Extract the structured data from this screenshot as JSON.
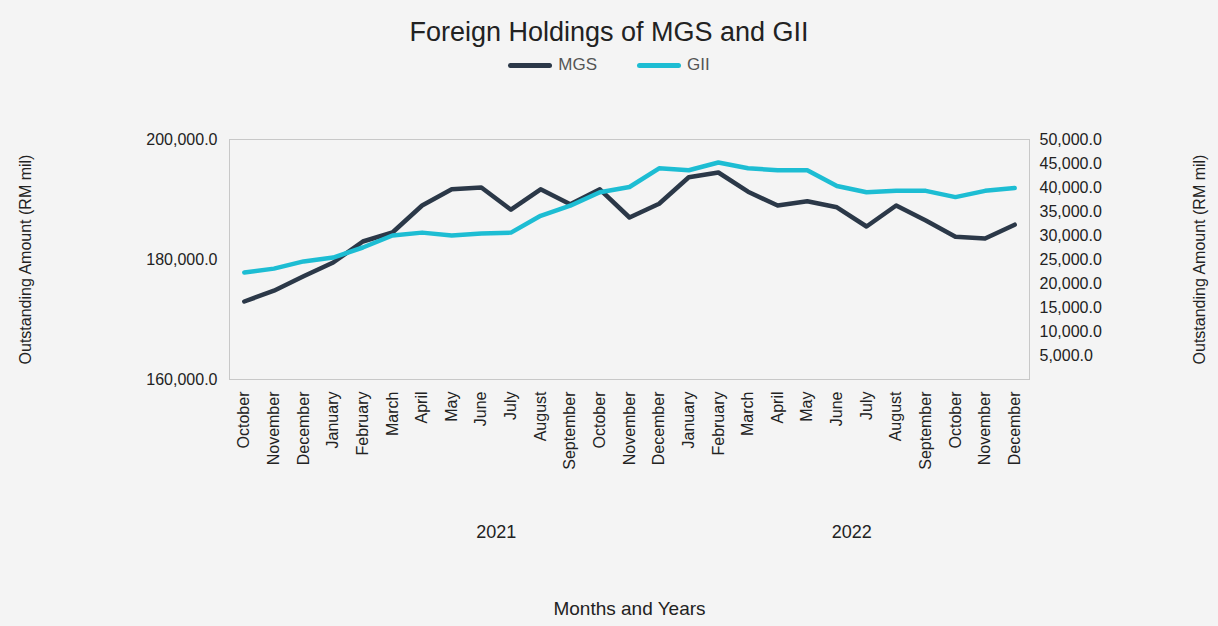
{
  "chart_data": {
    "type": "line",
    "title": "Foreign Holdings of MGS and GII",
    "x_label": "Months and Years",
    "y_label": "Outstanding Amount (RM mil)",
    "y2_label": "Outstanding Amount (RM mil)",
    "categories": [
      "October",
      "November",
      "December",
      "January",
      "February",
      "March",
      "April",
      "May",
      "June",
      "July",
      "August",
      "September",
      "October",
      "November",
      "December",
      "January",
      "February",
      "March",
      "April",
      "May",
      "June",
      "July",
      "August",
      "September",
      "October",
      "November",
      "December"
    ],
    "years": [
      null,
      null,
      null,
      "2021",
      "2021",
      "2021",
      "2021",
      "2021",
      "2021",
      "2021",
      "2021",
      "2021",
      "2021",
      "2021",
      "2021",
      "2022",
      "2022",
      "2022",
      "2022",
      "2022",
      "2022",
      "2022",
      "2022",
      "2022",
      "2022",
      "2022",
      "2022"
    ],
    "series": [
      {
        "name": "MGS",
        "color": "#2b3848",
        "axis": "y",
        "values": [
          173000,
          174800,
          177200,
          179500,
          183000,
          184500,
          189000,
          191700,
          192000,
          188300,
          191700,
          189200,
          191700,
          187000,
          189300,
          193700,
          194500,
          191300,
          189000,
          189700,
          188700,
          185500,
          189000,
          186500,
          183800,
          183500,
          185800
        ]
      },
      {
        "name": "GII",
        "color": "#1dbdd3",
        "axis": "y2",
        "values": [
          22300,
          23100,
          24600,
          25400,
          27500,
          30000,
          30600,
          30000,
          30400,
          30600,
          34100,
          36200,
          39000,
          40100,
          44000,
          43600,
          45200,
          44000,
          43600,
          43600,
          40300,
          39000,
          39300,
          39300,
          38000,
          39300,
          39900
        ]
      }
    ],
    "ylim": [
      160000,
      200000
    ],
    "yticks": [
      {
        "value": 160000,
        "label": "160,000.0"
      },
      {
        "value": 180000,
        "label": "180,000.0"
      },
      {
        "value": 200000,
        "label": "200,000.0"
      }
    ],
    "y2lim": [
      0,
      50000
    ],
    "y2ticks": [
      {
        "value": 5000,
        "label": "5,000.0"
      },
      {
        "value": 10000,
        "label": "10,000.0"
      },
      {
        "value": 15000,
        "label": "15,000.0"
      },
      {
        "value": 20000,
        "label": "20,000.0"
      },
      {
        "value": 25000,
        "label": "25,000.0"
      },
      {
        "value": 30000,
        "label": "30,000.0"
      },
      {
        "value": 35000,
        "label": "35,000.0"
      },
      {
        "value": 40000,
        "label": "40,000.0"
      },
      {
        "value": 45000,
        "label": "45,000.0"
      },
      {
        "value": 50000,
        "label": "50,000.0"
      }
    ],
    "legend": "top",
    "grid": false
  }
}
